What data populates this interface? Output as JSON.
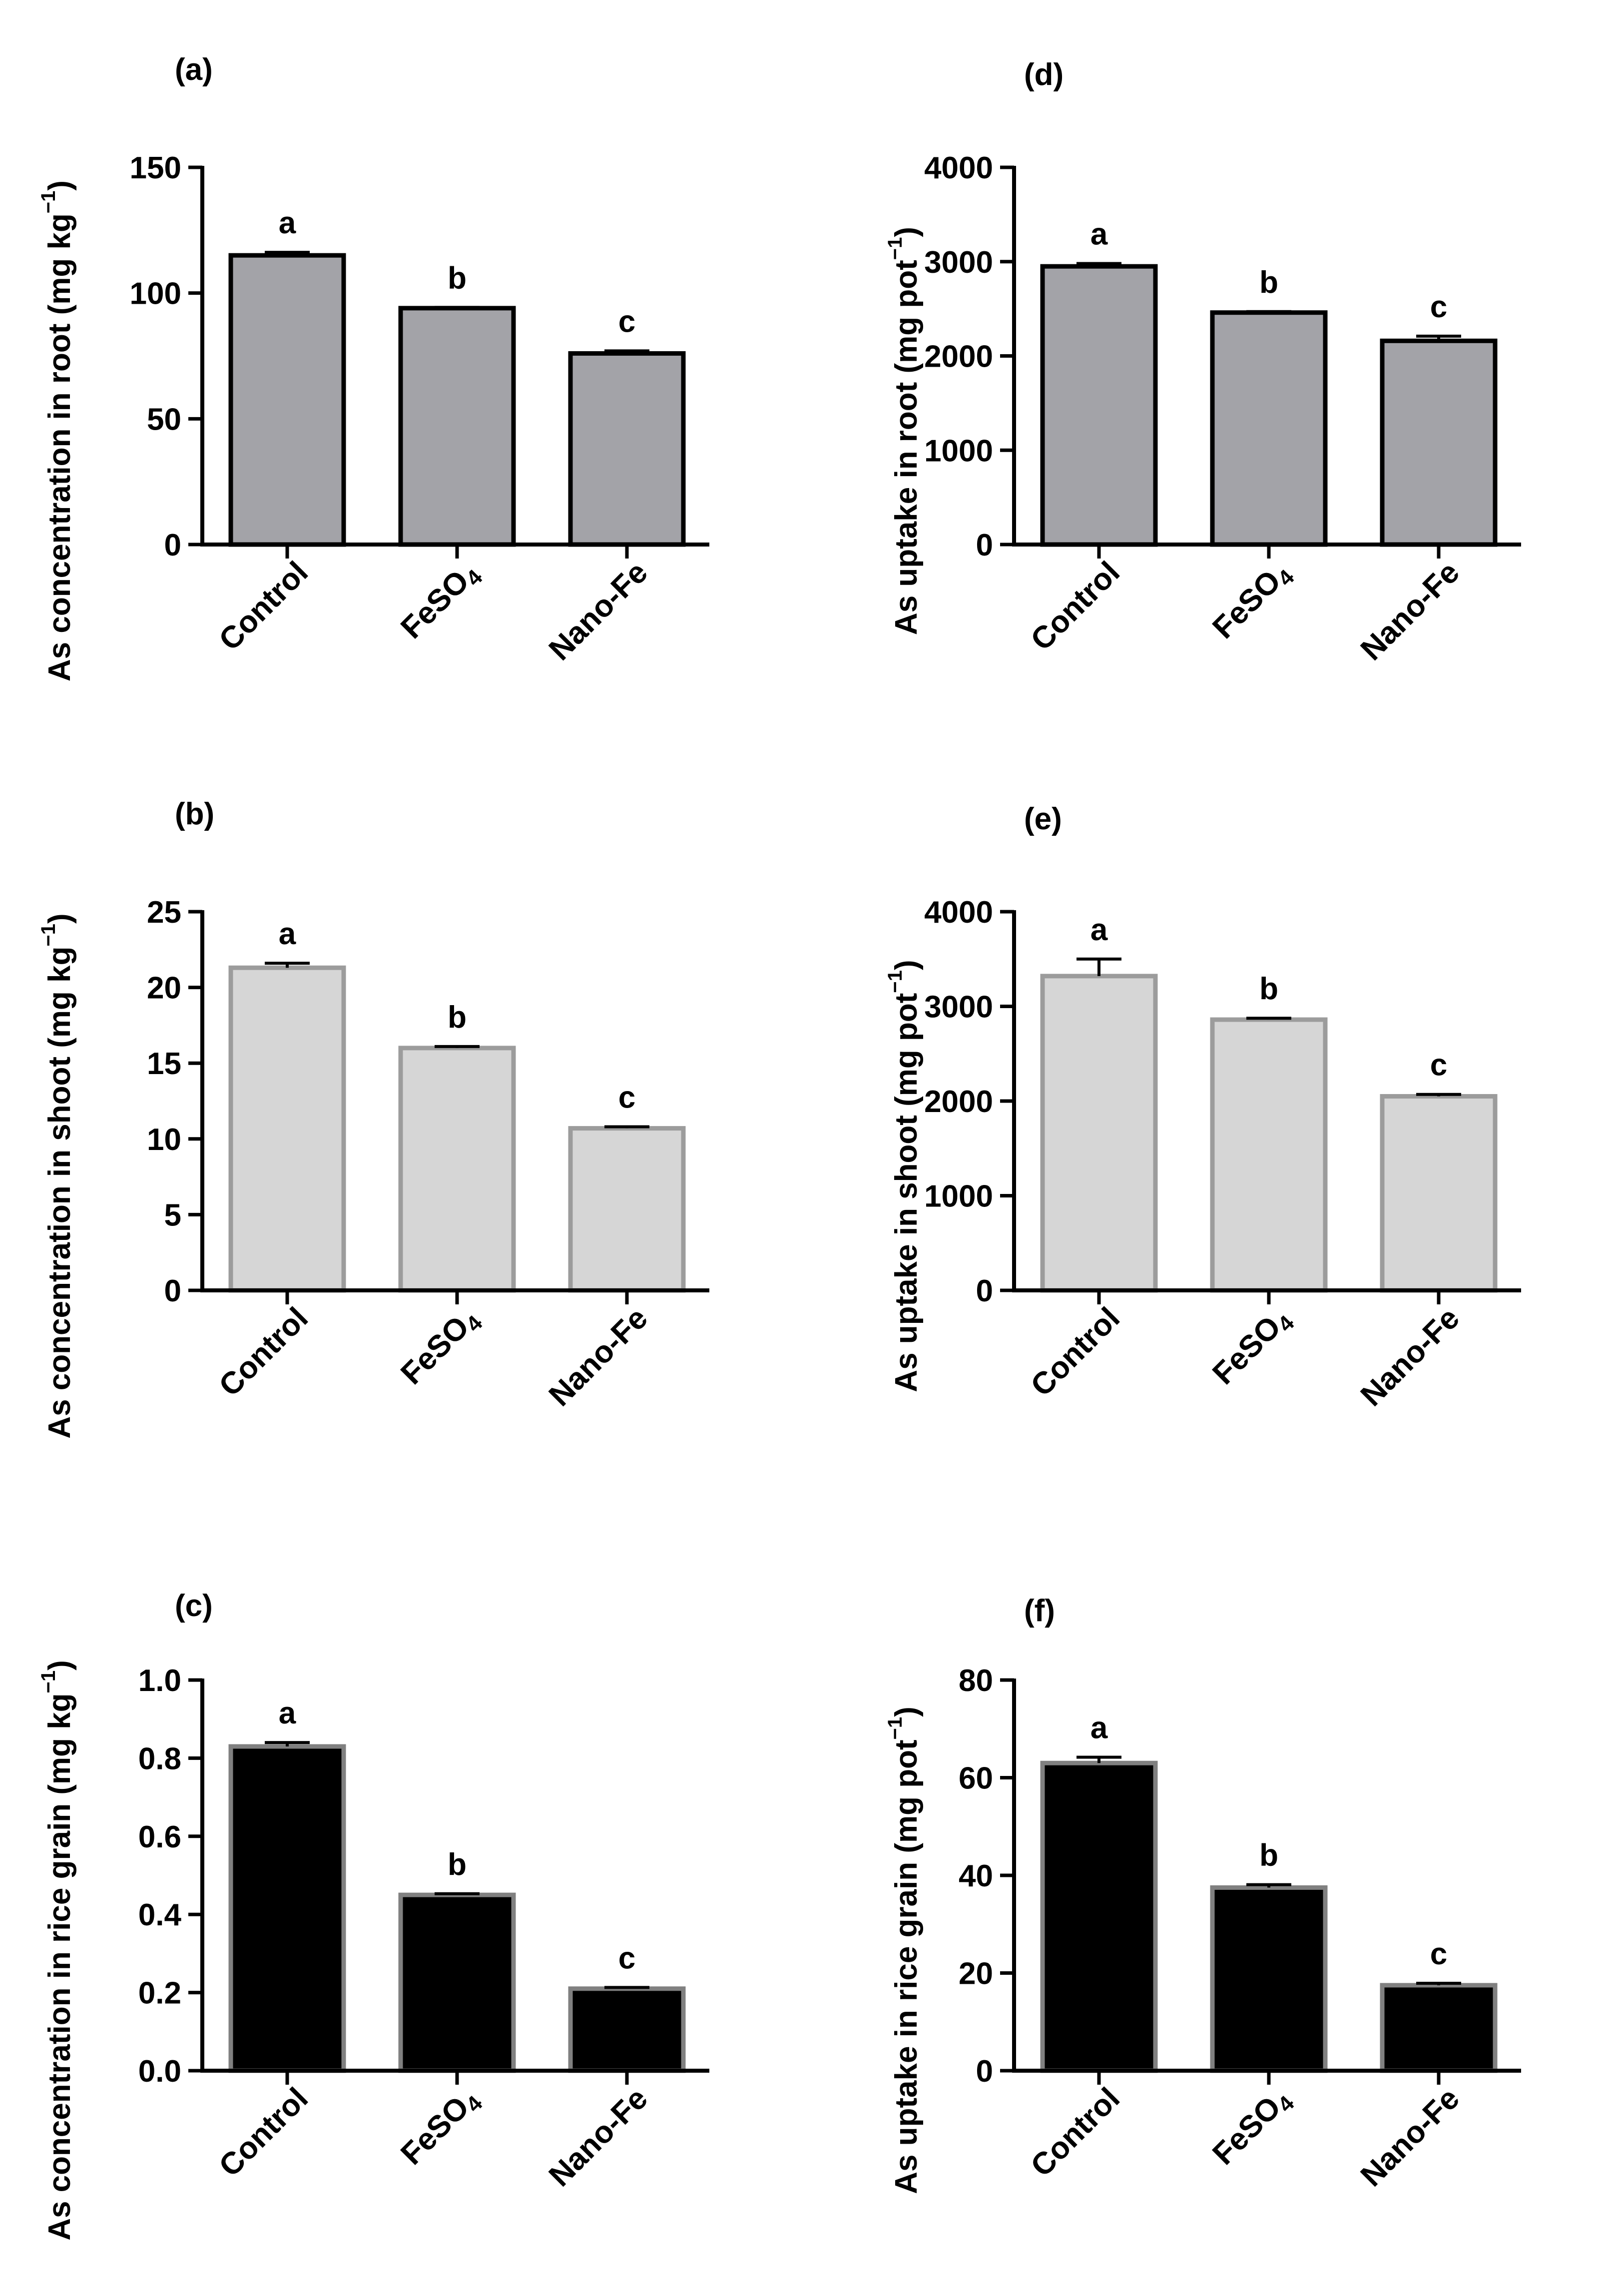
{
  "figure": {
    "categories": [
      "Control",
      "FeSO4",
      "Nano-Fe"
    ]
  },
  "colors": {
    "root_fill": "#a3a3a8",
    "root_edge": "#000000",
    "shoot_fill": "#d6d6d6",
    "shoot_edge": "#9c9c9c",
    "grain_fill": "#000000",
    "grain_edge": "#808080"
  },
  "chart_data": [
    {
      "id": "a",
      "type": "bar",
      "panel_label": "(a)",
      "ylabel": "As concentration in root (mg kg",
      "ylabel_sup": "−1",
      "ylabel_close": ")",
      "categories": [
        "Control",
        "FeSO4",
        "Nano-Fe"
      ],
      "values": [
        115,
        94,
        76
      ],
      "errors": [
        1.2,
        0.3,
        1.0
      ],
      "letters": [
        "a",
        "b",
        "c"
      ],
      "ylim": [
        0,
        150
      ],
      "yticks": [
        0,
        50,
        100,
        150
      ],
      "style": "root"
    },
    {
      "id": "b",
      "type": "bar",
      "panel_label": "(b)",
      "ylabel": "As concentration in shoot (mg kg",
      "ylabel_sup": "−1",
      "ylabel_close": ")",
      "categories": [
        "Control",
        "FeSO4",
        "Nano-Fe"
      ],
      "values": [
        21.3,
        16.0,
        10.7
      ],
      "errors": [
        0.3,
        0.1,
        0.1
      ],
      "letters": [
        "a",
        "b",
        "c"
      ],
      "ylim": [
        0,
        25
      ],
      "yticks": [
        0,
        5,
        10,
        15,
        20,
        25
      ],
      "style": "shoot"
    },
    {
      "id": "c",
      "type": "bar",
      "panel_label": "(c)",
      "ylabel": "As concentration in rice grain (mg kg",
      "ylabel_sup": "−1",
      "ylabel_close": ")",
      "categories": [
        "Control",
        "FeSO4",
        "Nano-Fe"
      ],
      "values": [
        0.83,
        0.45,
        0.21
      ],
      "errors": [
        0.01,
        0.003,
        0.003
      ],
      "letters": [
        "a",
        "b",
        "c"
      ],
      "ylim": [
        0,
        1.0
      ],
      "yticks": [
        0.0,
        0.2,
        0.4,
        0.6,
        0.8,
        1.0
      ],
      "tick_decimals": 1,
      "style": "grain"
    },
    {
      "id": "d",
      "type": "bar",
      "panel_label": "(d)",
      "ylabel": "As uptake in root (mg pot",
      "ylabel_sup": "−1",
      "ylabel_close": ")",
      "categories": [
        "Control",
        "FeSO4",
        "Nano-Fe"
      ],
      "values": [
        2950,
        2460,
        2160
      ],
      "errors": [
        30,
        10,
        50
      ],
      "letters": [
        "a",
        "b",
        "c"
      ],
      "ylim": [
        0,
        4000
      ],
      "yticks": [
        0,
        1000,
        2000,
        3000,
        4000
      ],
      "style": "root"
    },
    {
      "id": "e",
      "type": "bar",
      "panel_label": "(e)",
      "ylabel": "As uptake in shoot (mg pot",
      "ylabel_sup": "−1",
      "ylabel_close": ")",
      "categories": [
        "Control",
        "FeSO4",
        "Nano-Fe"
      ],
      "values": [
        3320,
        2860,
        2050
      ],
      "errors": [
        180,
        15,
        20
      ],
      "letters": [
        "a",
        "b",
        "c"
      ],
      "ylim": [
        0,
        4000
      ],
      "yticks": [
        0,
        1000,
        2000,
        3000,
        4000
      ],
      "style": "shoot"
    },
    {
      "id": "f",
      "type": "bar",
      "panel_label": "(f)",
      "ylabel": "As uptake in rice grain (mg pot",
      "ylabel_sup": "−1",
      "ylabel_close": ")",
      "categories": [
        "Control",
        "FeSO4",
        "Nano-Fe"
      ],
      "values": [
        63,
        37.5,
        17.5
      ],
      "errors": [
        1.2,
        0.6,
        0.4
      ],
      "letters": [
        "a",
        "b",
        "c"
      ],
      "ylim": [
        0,
        80
      ],
      "yticks": [
        0,
        20,
        40,
        60,
        80
      ],
      "style": "grain"
    }
  ]
}
